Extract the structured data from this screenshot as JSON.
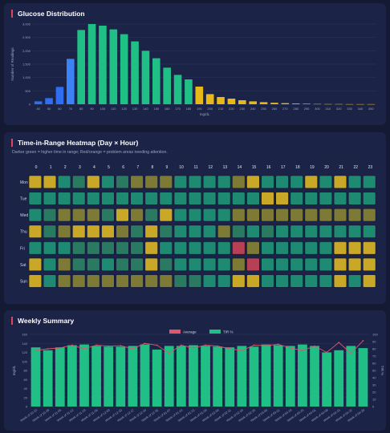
{
  "glucose": {
    "title": "Glucose Distribution",
    "chart_data": {
      "type": "bar",
      "categories": [
        "40",
        "50",
        "60",
        "70",
        "80",
        "90",
        "100",
        "110",
        "120",
        "130",
        "140",
        "150",
        "160",
        "170",
        "180",
        "190",
        "200",
        "210",
        "220",
        "230",
        "240",
        "250",
        "260",
        "270",
        "280",
        "290",
        "300",
        "310",
        "320",
        "330",
        "340",
        "350"
      ],
      "values": [
        110,
        230,
        650,
        1700,
        2780,
        3000,
        2940,
        2800,
        2620,
        2350,
        2000,
        1720,
        1370,
        1100,
        930,
        660,
        380,
        270,
        210,
        150,
        110,
        80,
        55,
        40,
        28,
        18,
        12,
        8,
        6,
        4,
        3,
        2
      ],
      "colors": [
        "#2f6ef0",
        "#2f6ef0",
        "#2f6ef0",
        "#3b82f6",
        "#1fbf86",
        "#1fbf86",
        "#1fbf86",
        "#1fbf86",
        "#1fbf86",
        "#1fbf86",
        "#1fbf86",
        "#1fbf86",
        "#1fbf86",
        "#1fbf86",
        "#1fbf86",
        "#e8b818",
        "#e8b818",
        "#e8b818",
        "#e8b818",
        "#e8b818",
        "#e8b818",
        "#e8b818",
        "#e8b818",
        "#e8b818",
        "#e8b818",
        "#e8b818",
        "#e8b818",
        "#e8b818",
        "#e8b818",
        "#e8b818",
        "#e8b818",
        "#e8b818"
      ],
      "xlabel": "mg/dL",
      "ylabel": "Number of Readings",
      "ylim": [
        0,
        3000
      ],
      "yticks": [
        "0",
        "500",
        "1,000",
        "1,500",
        "2,000",
        "2,500",
        "3,000"
      ],
      "grid": true
    }
  },
  "heatmap": {
    "title": "Time-in-Range Heatmap (Day × Hour)",
    "subtitle": "Darker green = higher time in range; Red/orange = problem areas needing attention.",
    "hours": [
      "0",
      "1",
      "2",
      "3",
      "4",
      "5",
      "6",
      "7",
      "8",
      "9",
      "10",
      "11",
      "12",
      "13",
      "14",
      "15",
      "16",
      "17",
      "18",
      "19",
      "20",
      "21",
      "22",
      "23"
    ],
    "days": [
      "Mon",
      "Tue",
      "Wed",
      "Thu",
      "Fri",
      "Sat",
      "Sun"
    ],
    "legend_colors": {
      "g": "#1f8a72",
      "m": "#2a7a62",
      "o": "#7d7a35",
      "y": "#c9a727",
      "r": "#b84054"
    },
    "chart_data": {
      "type": "heatmap",
      "rows": [
        [
          "y",
          "y",
          "g",
          "m",
          "y",
          "g",
          "m",
          "o",
          "o",
          "o",
          "g",
          "g",
          "g",
          "g",
          "o",
          "y",
          "g",
          "g",
          "g",
          "y",
          "g",
          "y",
          "g",
          "g"
        ],
        [
          "g",
          "g",
          "g",
          "g",
          "g",
          "g",
          "g",
          "g",
          "g",
          "g",
          "g",
          "g",
          "g",
          "g",
          "g",
          "g",
          "y",
          "y",
          "g",
          "g",
          "g",
          "g",
          "g",
          "g"
        ],
        [
          "g",
          "m",
          "o",
          "o",
          "o",
          "m",
          "y",
          "o",
          "m",
          "y",
          "g",
          "g",
          "g",
          "g",
          "o",
          "o",
          "o",
          "o",
          "o",
          "o",
          "o",
          "o",
          "o",
          "o"
        ],
        [
          "y",
          "m",
          "o",
          "y",
          "y",
          "y",
          "o",
          "m",
          "y",
          "m",
          "g",
          "g",
          "g",
          "o",
          "m",
          "g",
          "m",
          "g",
          "g",
          "g",
          "g",
          "g",
          "g",
          "g"
        ],
        [
          "g",
          "g",
          "g",
          "m",
          "m",
          "m",
          "m",
          "m",
          "y",
          "g",
          "g",
          "g",
          "g",
          "g",
          "r",
          "o",
          "g",
          "g",
          "g",
          "g",
          "g",
          "y",
          "y",
          "y"
        ],
        [
          "y",
          "g",
          "o",
          "m",
          "m",
          "g",
          "m",
          "m",
          "y",
          "m",
          "g",
          "g",
          "g",
          "g",
          "o",
          "r",
          "g",
          "g",
          "g",
          "g",
          "g",
          "y",
          "y",
          "y"
        ],
        [
          "y",
          "g",
          "o",
          "o",
          "o",
          "o",
          "o",
          "o",
          "o",
          "o",
          "m",
          "m",
          "g",
          "g",
          "y",
          "y",
          "g",
          "g",
          "g",
          "g",
          "g",
          "y",
          "g",
          "y"
        ]
      ]
    }
  },
  "weekly": {
    "title": "Weekly Summary",
    "legend": [
      {
        "label": "Average",
        "color": "#e0556a"
      },
      {
        "label": "TIR %",
        "color": "#1fbf86"
      }
    ],
    "chart_data": {
      "type": "bar",
      "categories": [
        "Week of 10-22",
        "Week of 10-29",
        "Week of 11-05",
        "Week of 11-12",
        "Week of 11-19",
        "Week of 11-26",
        "Week of 12-03",
        "Week of 12-10",
        "Week of 12-17",
        "Week of 12-24",
        "Week of 12-31",
        "Week of 01-07",
        "Week of 01-14",
        "Week of 01-21",
        "Week of 01-28",
        "Week of 02-04",
        "Week of 02-11",
        "Week of 02-18",
        "Week of 02-25",
        "Week of 03-04",
        "Week of 03-11",
        "Week of 03-18",
        "Week of 03-25",
        "Week of 04-01",
        "Week of 04-08",
        "Week of 04-15",
        "Week of 04-22",
        "Week of 04-29"
      ],
      "series": [
        {
          "name": "TIR %",
          "type": "bar",
          "axis": "right",
          "values": [
            82,
            78,
            82,
            85,
            86,
            84,
            83,
            83,
            84,
            86,
            79,
            84,
            84,
            85,
            84,
            83,
            82,
            84,
            83,
            86,
            85,
            84,
            86,
            84,
            75,
            78,
            84,
            81
          ]
        },
        {
          "name": "Average",
          "type": "line",
          "axis": "left",
          "values": [
            124,
            128,
            130,
            136,
            128,
            136,
            134,
            135,
            128,
            140,
            136,
            118,
            136,
            130,
            136,
            134,
            128,
            124,
            136,
            135,
            138,
            130,
            124,
            134,
            120,
            142,
            118,
            146
          ]
        }
      ],
      "ylabel_left": "mg/dL",
      "ylabel_right": "TIR %",
      "ylim_left": [
        0,
        160
      ],
      "ylim_right": [
        0,
        100
      ],
      "yticks_left": [
        "0",
        "20",
        "40",
        "60",
        "80",
        "100",
        "120",
        "140",
        "160"
      ],
      "yticks_right": [
        "0",
        "10",
        "20",
        "30",
        "40",
        "50",
        "60",
        "70",
        "80",
        "90",
        "100"
      ],
      "grid": true
    }
  }
}
